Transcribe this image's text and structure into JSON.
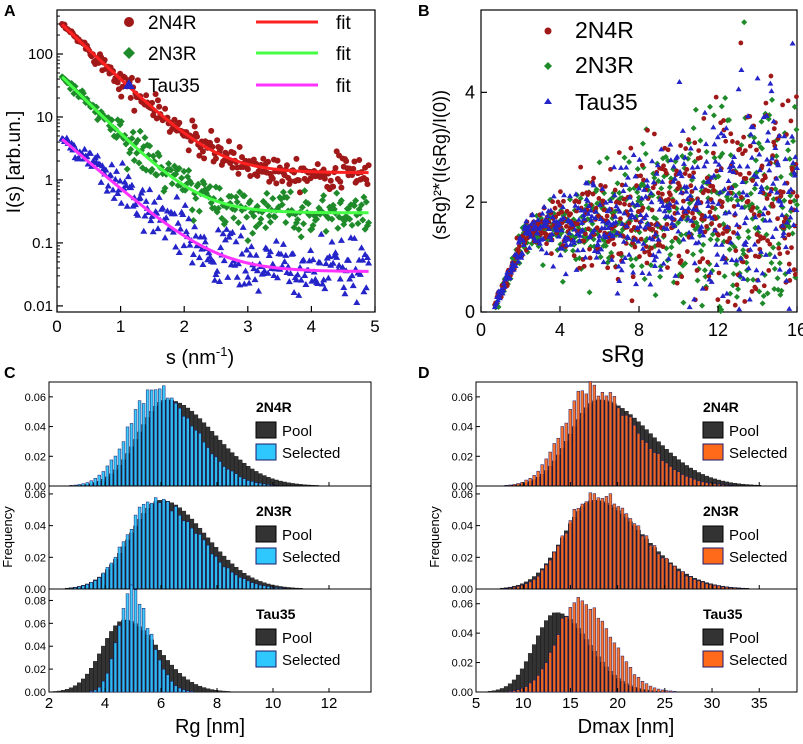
{
  "colors": {
    "n4r": "#a01818",
    "n3r": "#1e8a2a",
    "tau": "#2424c8",
    "fit_n4r": "#ff2020",
    "fit_n3r": "#44ff44",
    "fit_tau": "#ff33ff",
    "pool": "#333333",
    "selected_rg": "#2ec8ff",
    "selected_dmax": "#ff6a1a"
  },
  "chart_data": [
    {
      "panel": "A",
      "type": "scatter",
      "xlabel": "s (nm",
      "xlabel_sup": "-1",
      "xlabel_end": ")",
      "ylabel": "I(s) [arb.un.]",
      "yscale": "log",
      "xlim": [
        0,
        5
      ],
      "ylim": [
        0.008,
        500
      ],
      "xticks": [
        "0",
        "1",
        "2",
        "3",
        "4",
        "5"
      ],
      "yticks": [
        "0.01",
        "0.1",
        "1",
        "10",
        "100"
      ],
      "series": [
        {
          "name": "2N4R",
          "fit_label": "fit",
          "i0": 350,
          "k": 2.2,
          "plateau": 1.3,
          "scatter": 0.22
        },
        {
          "name": "2N3R",
          "fit_label": "fit",
          "i0": 52,
          "k": 2.3,
          "plateau": 0.3,
          "scatter": 0.3
        },
        {
          "name": "Tau35",
          "fit_label": "fit",
          "i0": 5.2,
          "k": 2.0,
          "plateau": 0.035,
          "scatter": 0.42
        }
      ]
    },
    {
      "panel": "B",
      "type": "scatter",
      "xlabel": "sRg",
      "ylabel": "(sRg)²*(I(sRg)/I(0))",
      "xlim": [
        0,
        16
      ],
      "ylim": [
        0,
        5.5
      ],
      "xticks": [
        "0",
        "4",
        "8",
        "12",
        "16"
      ],
      "yticks": [
        "0",
        "2",
        "4"
      ],
      "series": [
        {
          "name": "2N4R",
          "rg": 6.0
        },
        {
          "name": "2N3R",
          "rg": 5.8
        },
        {
          "name": "Tau35",
          "rg": 5.0
        }
      ]
    },
    {
      "panel": "C",
      "type": "bar",
      "xlabel": "Rg [nm]",
      "ylabel": "Frequency",
      "xlim": [
        2,
        13.5
      ],
      "xticks": [
        "2",
        "4",
        "6",
        "8",
        "10",
        "12"
      ],
      "subplots": [
        {
          "name": "2N4R",
          "pool_label": "Pool",
          "selected_label": "Selected",
          "ymax": 0.07,
          "yticks": [
            "0.00",
            "0.02",
            "0.04",
            "0.06"
          ],
          "pool_mode": 6.2,
          "pool_sl": 1.0,
          "pool_sr": 1.7,
          "pool_peak": 0.058,
          "sel_mode": 5.8,
          "sel_sl": 0.95,
          "sel_sr": 1.4,
          "sel_peak": 0.065
        },
        {
          "name": "2N3R",
          "pool_label": "Pool",
          "selected_label": "Selected",
          "ymax": 0.065,
          "yticks": [
            "0.00",
            "0.02",
            "0.04",
            "0.06"
          ],
          "pool_mode": 6.0,
          "pool_sl": 1.1,
          "pool_sr": 1.6,
          "pool_peak": 0.056,
          "sel_mode": 5.8,
          "sel_sl": 1.0,
          "sel_sr": 1.5,
          "sel_peak": 0.057
        },
        {
          "name": "Tau35",
          "pool_label": "Pool",
          "selected_label": "Selected",
          "ymax": 0.09,
          "yticks": [
            "0.00",
            "0.02",
            "0.04",
            "0.06",
            "0.08"
          ],
          "pool_mode": 4.7,
          "pool_sl": 0.8,
          "pool_sr": 1.2,
          "pool_peak": 0.063,
          "sel_mode": 4.9,
          "sel_sl": 0.45,
          "sel_sr": 0.7,
          "sel_peak": 0.088
        }
      ]
    },
    {
      "panel": "D",
      "type": "bar",
      "xlabel": "Dmax [nm]",
      "ylabel": "Frequency",
      "xlim": [
        5,
        39
      ],
      "xticks": [
        "5",
        "10",
        "15",
        "20",
        "25",
        "30",
        "35"
      ],
      "subplots": [
        {
          "name": "2N4R",
          "pool_label": "Pool",
          "selected_label": "Selected",
          "ymax": 0.07,
          "yticks": [
            "0.00",
            "0.02",
            "0.04",
            "0.06"
          ],
          "pool_mode": 18.0,
          "pool_sl": 3.0,
          "pool_sr": 5.5,
          "pool_peak": 0.058,
          "sel_mode": 17.0,
          "sel_sl": 2.8,
          "sel_sr": 4.8,
          "sel_peak": 0.066
        },
        {
          "name": "2N3R",
          "pool_label": "Pool",
          "selected_label": "Selected",
          "ymax": 0.065,
          "yticks": [
            "0.00",
            "0.02",
            "0.04",
            "0.06"
          ],
          "pool_mode": 17.5,
          "pool_sl": 3.2,
          "pool_sr": 5.2,
          "pool_peak": 0.056,
          "sel_mode": 17.5,
          "sel_sl": 3.0,
          "sel_sr": 5.0,
          "sel_peak": 0.06
        },
        {
          "name": "Tau35",
          "pool_label": "Pool",
          "selected_label": "Selected",
          "ymax": 0.07,
          "yticks": [
            "0.00",
            "0.02",
            "0.04",
            "0.06"
          ],
          "pool_mode": 13.5,
          "pool_sl": 2.3,
          "pool_sr": 3.5,
          "pool_peak": 0.054,
          "sel_mode": 16.0,
          "sel_sl": 2.4,
          "sel_sr": 3.2,
          "sel_peak": 0.064
        }
      ]
    }
  ],
  "panel_labels": {
    "a": "A",
    "b": "B",
    "c": "C",
    "d": "D"
  }
}
